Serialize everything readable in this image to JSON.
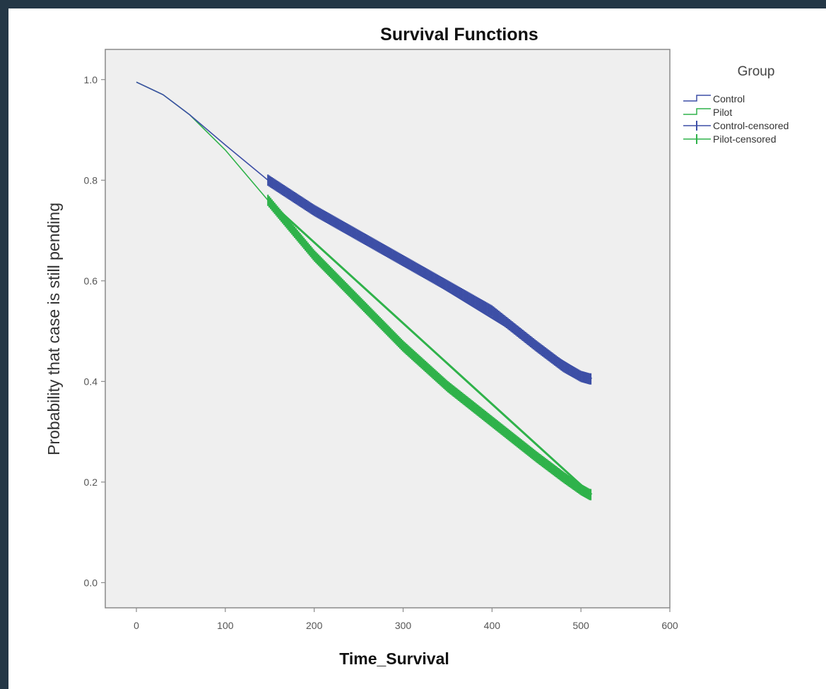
{
  "colors": {
    "page_background": "#243746",
    "plot_background": "#efefef",
    "control": "#3d4fa6",
    "pilot": "#2fb24a"
  },
  "chart_data": {
    "type": "line",
    "subtype": "kaplan-meier survival curves",
    "title": "Survival Functions",
    "xlabel": "Time_Survival",
    "ylabel": "Probability that case is still pending",
    "xlim": [
      -35,
      600
    ],
    "ylim": [
      -0.05,
      1.06
    ],
    "x_ticks": [
      0,
      100,
      200,
      300,
      400,
      500,
      600
    ],
    "y_ticks": [
      0.0,
      0.2,
      0.4,
      0.6,
      0.8,
      1.0
    ],
    "x_tick_labels": [
      "0",
      "100",
      "200",
      "300",
      "400",
      "500",
      "600"
    ],
    "y_tick_labels": [
      "0.0",
      "0.2",
      "0.4",
      "0.6",
      "0.8",
      "1.0"
    ],
    "grid": false,
    "legend": {
      "title": "Group",
      "placement": "right",
      "entries": [
        "Control",
        "Pilot",
        "Control-censored",
        "Pilot-censored"
      ]
    },
    "series": [
      {
        "name": "Control",
        "color": "#3d4fa6",
        "x": [
          0,
          30,
          60,
          100,
          148,
          200,
          250,
          300,
          350,
          400,
          450,
          480,
          500,
          510
        ],
        "y": [
          0.995,
          0.97,
          0.93,
          0.87,
          0.8,
          0.74,
          0.69,
          0.64,
          0.59,
          0.54,
          0.47,
          0.43,
          0.41,
          0.405
        ]
      },
      {
        "name": "Pilot",
        "color": "#2fb24a",
        "x": [
          0,
          30,
          60,
          100,
          148,
          200,
          250,
          300,
          350,
          400,
          450,
          480,
          500,
          510
        ],
        "y": [
          0.995,
          0.97,
          0.93,
          0.86,
          0.76,
          0.65,
          0.56,
          0.47,
          0.39,
          0.32,
          0.25,
          0.21,
          0.185,
          0.175
        ]
      },
      {
        "name": "Control-censored",
        "color": "#3d4fa6",
        "x_range": [
          148,
          512
        ]
      },
      {
        "name": "Pilot-censored",
        "color": "#2fb24a",
        "x_range": [
          148,
          512
        ]
      }
    ]
  }
}
